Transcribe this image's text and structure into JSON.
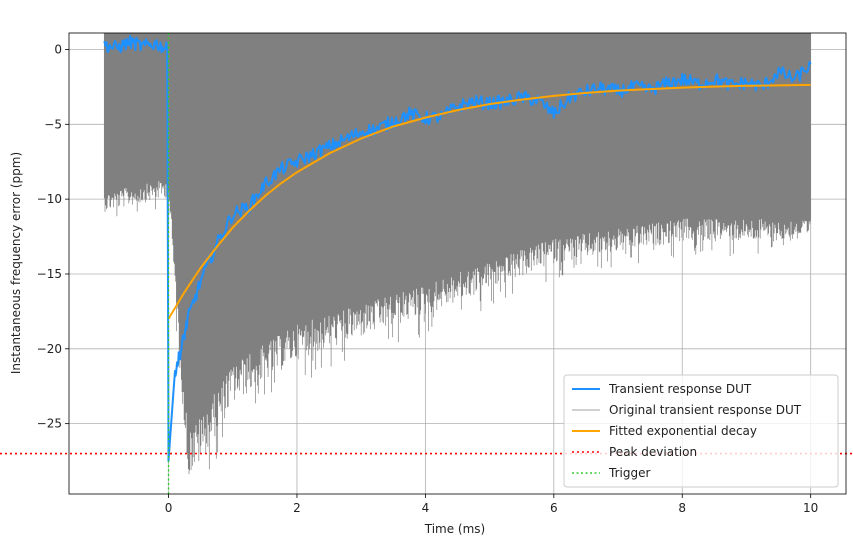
{
  "chart_data": {
    "type": "line",
    "xlabel": "Time (ms)",
    "ylabel": "Instantaneous frequency error (ppm)",
    "xlim": [
      -1.55,
      10.55
    ],
    "ylim": [
      -29.7,
      1.1
    ],
    "xticks": [
      0,
      2,
      4,
      6,
      8,
      10
    ],
    "yticks": [
      0,
      -5,
      -10,
      -15,
      -20,
      -25
    ],
    "grid": true,
    "legend_position": "lower right",
    "colors": {
      "transient": "#1e90ff",
      "original": "#808080",
      "fit": "#ffa500",
      "peak": "#ff0000",
      "trigger": "#32cd32"
    },
    "series": [
      {
        "name": "Transient response DUT",
        "style": "solid",
        "color": "#1e90ff",
        "x": [
          -1.0,
          -0.8,
          -0.6,
          -0.4,
          -0.2,
          -0.02,
          0.0,
          0.05,
          0.1,
          0.2,
          0.3,
          0.5,
          0.75,
          1.0,
          1.25,
          1.5,
          1.75,
          2.0,
          2.25,
          2.5,
          2.75,
          3.0,
          3.25,
          3.5,
          3.75,
          4.0,
          4.25,
          4.5,
          4.75,
          5.0,
          5.25,
          5.5,
          5.75,
          6.0,
          6.25,
          6.5,
          6.75,
          7.0,
          7.25,
          7.5,
          7.75,
          8.0,
          8.25,
          8.5,
          8.75,
          9.0,
          9.25,
          9.5,
          9.75,
          10.0
        ],
        "y": [
          0.3,
          0.1,
          0.5,
          0.2,
          0.4,
          0.0,
          -27.5,
          -24.5,
          -21.5,
          -20.0,
          -18.0,
          -15.5,
          -13.0,
          -11.0,
          -10.5,
          -9.0,
          -8.0,
          -7.5,
          -7.0,
          -6.5,
          -6.0,
          -5.5,
          -5.3,
          -4.8,
          -4.3,
          -4.6,
          -4.5,
          -3.8,
          -3.5,
          -3.6,
          -3.5,
          -3.2,
          -3.4,
          -4.3,
          -3.2,
          -2.8,
          -2.6,
          -2.8,
          -2.5,
          -2.7,
          -2.3,
          -2.0,
          -2.3,
          -2.0,
          -2.4,
          -2.2,
          -2.5,
          -1.5,
          -2.0,
          -1.0
        ]
      },
      {
        "name": "Original transient response DUT",
        "style": "thin",
        "color": "#808080",
        "x_range": [
          -1.0,
          10.0
        ],
        "envelope_x": [
          -1.0,
          0.0,
          0.3,
          0.5,
          1.0,
          2.0,
          4.0,
          6.0,
          8.0,
          10.0
        ],
        "envelope_upper": [
          1.1,
          1.1,
          1.1,
          1.1,
          1.1,
          1.1,
          1.1,
          1.1,
          1.1,
          1.1
        ],
        "envelope_lower": [
          -11.0,
          -10.0,
          -29.0,
          -28.0,
          -24.0,
          -21.0,
          -18.0,
          -14.5,
          -13.0,
          -13.0
        ]
      },
      {
        "name": "Fitted exponential decay",
        "style": "solid",
        "color": "#ffa500",
        "x": [
          0,
          0.25,
          0.5,
          0.75,
          1.0,
          1.25,
          1.5,
          1.75,
          2.0,
          2.5,
          3.0,
          3.5,
          4.0,
          4.5,
          5.0,
          5.5,
          6.0,
          6.5,
          7.0,
          7.5,
          8.0,
          8.5,
          9.0,
          9.5,
          10.0
        ],
        "y": [
          -18.0,
          -16.2,
          -14.6,
          -13.2,
          -11.9,
          -10.8,
          -9.8,
          -8.95,
          -8.2,
          -6.95,
          -5.95,
          -5.15,
          -4.55,
          -4.05,
          -3.65,
          -3.35,
          -3.1,
          -2.9,
          -2.75,
          -2.65,
          -2.55,
          -2.48,
          -2.43,
          -2.4,
          -2.37
        ]
      },
      {
        "name": "Peak deviation",
        "style": "dotted",
        "color": "#ff0000",
        "y": -27.0
      },
      {
        "name": "Trigger",
        "style": "dotted",
        "color": "#32cd32",
        "x": 0.0
      }
    ]
  }
}
